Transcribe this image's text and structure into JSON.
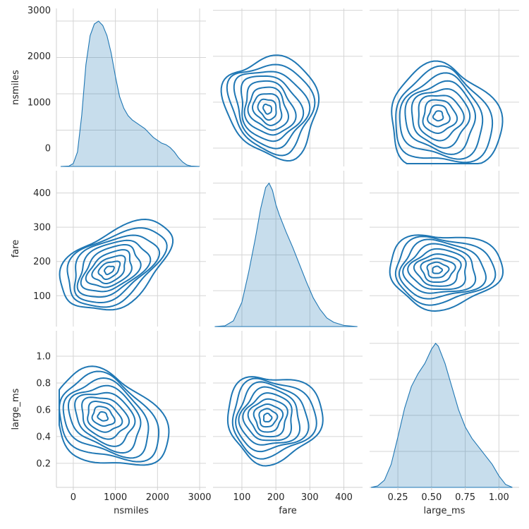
{
  "chart_data": {
    "type": "pairplot",
    "style": "kde",
    "variables": [
      "nsmiles",
      "fare",
      "large_ms"
    ],
    "color": "#1f77b4",
    "grid": true,
    "axes": {
      "nsmiles": {
        "label": "nsmiles",
        "range": [
          -400,
          3150
        ],
        "ticks": [
          0,
          1000,
          2000,
          3000
        ],
        "tick_labels": [
          "0",
          "1000",
          "2000",
          "3000"
        ],
        "y_range": [
          -400,
          3040
        ],
        "y_ticks": [
          0,
          1000,
          2000,
          3000
        ],
        "y_tick_labels": [
          "0",
          "1000",
          "2000",
          "3000"
        ]
      },
      "fare": {
        "label": "fare",
        "range": [
          15,
          455
        ],
        "ticks": [
          100,
          200,
          300,
          400
        ],
        "tick_labels": [
          "100",
          "200",
          "300",
          "400"
        ],
        "y_range": [
          10,
          465
        ],
        "y_ticks": [
          100,
          200,
          300,
          400
        ],
        "y_tick_labels": [
          "100",
          "200",
          "300",
          "400"
        ]
      },
      "large_ms": {
        "label": "large_ms",
        "range": [
          0.04,
          1.15
        ],
        "ticks": [
          0.25,
          0.5,
          0.75,
          1.0
        ],
        "tick_labels": [
          "0.25",
          "0.50",
          "0.75",
          "1.00"
        ],
        "y_range": [
          0.02,
          1.19
        ],
        "y_ticks": [
          0.2,
          0.4,
          0.6,
          0.8,
          1.0
        ],
        "y_tick_labels": [
          "0.2",
          "0.4",
          "0.6",
          "0.8",
          "1.0"
        ]
      }
    },
    "diagonal_kde": {
      "nsmiles": {
        "x": [
          -300,
          -100,
          0,
          100,
          200,
          300,
          400,
          500,
          600,
          700,
          800,
          900,
          1000,
          1100,
          1200,
          1300,
          1400,
          1500,
          1600,
          1700,
          1800,
          1900,
          2000,
          2100,
          2200,
          2300,
          2400,
          2500,
          2600,
          2700,
          2800,
          3000
        ],
        "density": [
          0,
          0.003,
          0.02,
          0.1,
          0.35,
          0.7,
          0.9,
          0.98,
          1.0,
          0.97,
          0.9,
          0.78,
          0.62,
          0.48,
          0.4,
          0.35,
          0.32,
          0.3,
          0.28,
          0.26,
          0.23,
          0.2,
          0.18,
          0.16,
          0.15,
          0.13,
          0.1,
          0.06,
          0.03,
          0.01,
          0.003,
          0
        ]
      },
      "fare": {
        "x": [
          20,
          50,
          75,
          100,
          120,
          140,
          155,
          170,
          180,
          190,
          200,
          210,
          230,
          250,
          270,
          290,
          310,
          330,
          350,
          370,
          400,
          440
        ],
        "density": [
          0,
          0.005,
          0.04,
          0.17,
          0.38,
          0.62,
          0.82,
          0.97,
          1.0,
          0.95,
          0.85,
          0.78,
          0.66,
          0.55,
          0.43,
          0.31,
          0.2,
          0.12,
          0.06,
          0.03,
          0.008,
          0
        ]
      },
      "large_ms": {
        "x": [
          0.05,
          0.1,
          0.15,
          0.2,
          0.25,
          0.3,
          0.35,
          0.4,
          0.45,
          0.5,
          0.53,
          0.55,
          0.6,
          0.65,
          0.7,
          0.75,
          0.8,
          0.85,
          0.9,
          0.95,
          1.0,
          1.05,
          1.1
        ],
        "density": [
          0,
          0.01,
          0.05,
          0.16,
          0.35,
          0.55,
          0.7,
          0.79,
          0.86,
          0.96,
          1.0,
          0.98,
          0.86,
          0.7,
          0.54,
          0.42,
          0.34,
          0.28,
          0.22,
          0.16,
          0.08,
          0.02,
          0
        ]
      }
    },
    "contour_levels": 9,
    "joint_kde": {
      "nsmiles_vs_fare": {
        "mode": [
          850,
          175
        ],
        "spread_nsmiles": 520,
        "spread_fare": 48,
        "orientation": "positive"
      },
      "nsmiles_vs_large_ms": {
        "mode": [
          700,
          0.55
        ],
        "spread_nsmiles": 520,
        "spread_large_ms": 0.15,
        "orientation": "negative"
      },
      "fare_vs_large_ms": {
        "mode": [
          175,
          0.54
        ],
        "spread_fare": 50,
        "spread_large_ms": 0.15,
        "orientation": "none"
      }
    }
  }
}
